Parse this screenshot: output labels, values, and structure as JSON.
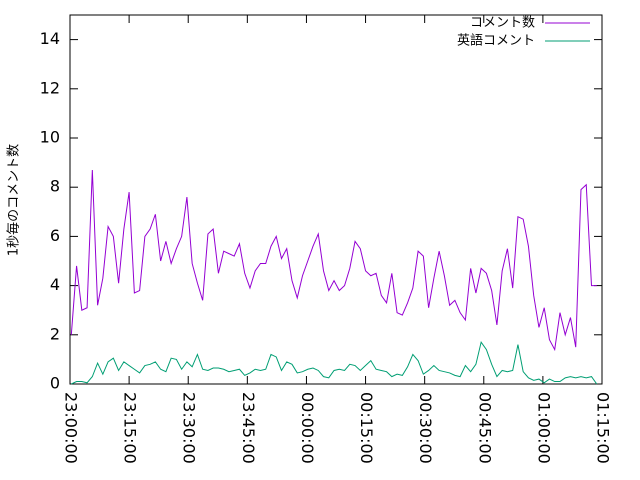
{
  "chart_data": {
    "type": "line",
    "ylabel": "1秒毎のコメント数",
    "x": [
      "23:00:20",
      "23:01:40",
      "23:03:00",
      "23:04:20",
      "23:05:40",
      "23:07:00",
      "23:08:20",
      "23:09:40",
      "23:11:00",
      "23:12:20",
      "23:13:40",
      "23:15:00",
      "23:16:20",
      "23:17:40",
      "23:19:00",
      "23:20:20",
      "23:21:40",
      "23:23:00",
      "23:24:20",
      "23:25:40",
      "23:27:00",
      "23:28:20",
      "23:29:40",
      "23:31:00",
      "23:32:20",
      "23:33:40",
      "23:35:00",
      "23:36:20",
      "23:37:40",
      "23:39:00",
      "23:40:20",
      "23:41:40",
      "23:43:00",
      "23:44:20",
      "23:45:40",
      "23:47:00",
      "23:48:20",
      "23:49:40",
      "23:51:00",
      "23:52:20",
      "23:53:40",
      "23:55:00",
      "23:56:20",
      "23:57:40",
      "23:59:00",
      "00:00:20",
      "00:01:40",
      "00:03:00",
      "00:04:20",
      "00:05:40",
      "00:07:00",
      "00:08:20",
      "00:09:40",
      "00:11:00",
      "00:12:20",
      "00:13:40",
      "00:15:00",
      "00:16:20",
      "00:17:40",
      "00:19:00",
      "00:20:20",
      "00:21:40",
      "00:23:00",
      "00:24:20",
      "00:25:40",
      "00:27:00",
      "00:28:20",
      "00:29:40",
      "00:31:00",
      "00:32:20",
      "00:33:40",
      "00:35:00",
      "00:36:20",
      "00:37:40",
      "00:39:00",
      "00:40:20",
      "00:41:40",
      "00:43:00",
      "00:44:20",
      "00:45:40",
      "00:47:00",
      "00:48:20",
      "00:49:40",
      "00:51:00",
      "00:52:20",
      "00:53:40",
      "00:55:00",
      "00:56:20",
      "00:57:40",
      "00:59:00",
      "01:00:20",
      "01:01:40",
      "01:03:00",
      "01:04:20",
      "01:05:40",
      "01:07:00",
      "01:08:20",
      "01:09:40",
      "01:11:00",
      "01:12:20",
      "01:13:40"
    ],
    "series": [
      {
        "name": "コメント数",
        "color": "#9400d3",
        "values": [
          2.0,
          4.8,
          3.0,
          3.1,
          8.7,
          3.2,
          4.3,
          6.4,
          6.0,
          4.1,
          6.3,
          7.8,
          3.7,
          3.8,
          6.0,
          6.3,
          6.9,
          5.0,
          5.8,
          4.9,
          5.5,
          6.0,
          7.6,
          4.9,
          4.1,
          3.4,
          6.1,
          6.3,
          4.5,
          5.4,
          5.3,
          5.2,
          5.7,
          4.5,
          3.9,
          4.6,
          4.9,
          4.9,
          5.6,
          6.0,
          5.1,
          5.5,
          4.2,
          3.5,
          4.4,
          5.0,
          5.6,
          6.1,
          4.6,
          3.8,
          4.2,
          3.8,
          4.0,
          4.7,
          5.8,
          5.5,
          4.6,
          4.4,
          4.5,
          3.6,
          3.3,
          4.5,
          2.9,
          2.8,
          3.3,
          3.9,
          5.4,
          5.2,
          3.1,
          4.3,
          5.4,
          4.4,
          3.2,
          3.4,
          2.9,
          2.6,
          4.7,
          3.7,
          4.7,
          4.5,
          3.8,
          2.4,
          4.6,
          5.5,
          3.9,
          6.8,
          6.7,
          5.6,
          3.6,
          2.3,
          3.1,
          1.8,
          1.4,
          2.9,
          2.0,
          2.7,
          1.5,
          7.9,
          8.1,
          4.0,
          4.0
        ]
      },
      {
        "name": "英語コメント",
        "color": "#009e73",
        "values": [
          0,
          0.1,
          0.1,
          0.05,
          0.3,
          0.85,
          0.4,
          0.9,
          1.05,
          0.55,
          0.9,
          0.75,
          0.6,
          0.45,
          0.75,
          0.8,
          0.9,
          0.6,
          0.5,
          1.05,
          1.0,
          0.6,
          0.9,
          0.7,
          1.2,
          0.6,
          0.55,
          0.65,
          0.65,
          0.6,
          0.5,
          0.55,
          0.6,
          0.35,
          0.45,
          0.6,
          0.55,
          0.6,
          1.2,
          1.1,
          0.55,
          0.9,
          0.8,
          0.45,
          0.5,
          0.6,
          0.65,
          0.55,
          0.3,
          0.25,
          0.55,
          0.6,
          0.55,
          0.8,
          0.75,
          0.55,
          0.75,
          0.95,
          0.6,
          0.55,
          0.5,
          0.3,
          0.4,
          0.35,
          0.7,
          1.2,
          0.95,
          0.4,
          0.55,
          0.75,
          0.55,
          0.5,
          0.45,
          0.35,
          0.3,
          0.75,
          0.5,
          0.8,
          1.7,
          1.4,
          0.8,
          0.3,
          0.55,
          0.5,
          0.55,
          1.6,
          0.5,
          0.25,
          0.15,
          0.2,
          0.05,
          0.2,
          0.1,
          0.1,
          0.25,
          0.3,
          0.25,
          0.3,
          0.25,
          0.3,
          0.0
        ]
      }
    ],
    "xlim": [
      "23:00:00",
      "01:15:00"
    ],
    "xticks": [
      "23:00:00",
      "23:15:00",
      "23:30:00",
      "23:45:00",
      "00:00:00",
      "00:15:00",
      "00:30:00",
      "00:45:00",
      "01:00:00",
      "01:15:00"
    ],
    "ylim": [
      0,
      15
    ],
    "yticks": [
      0,
      2,
      4,
      6,
      8,
      10,
      12,
      14
    ],
    "grid": false,
    "legend": "upper right"
  }
}
